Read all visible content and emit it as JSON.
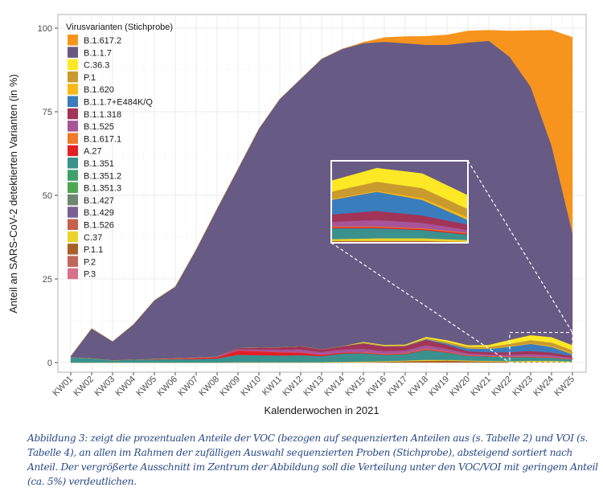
{
  "chart_data": {
    "type": "area",
    "stacked": true,
    "title": "",
    "xlabel": "Kalenderwochen in 2021",
    "ylabel": "Anteil an SARS-CoV-2 detektierten Varianten (in %)",
    "ylim": [
      0,
      100
    ],
    "yticks": [
      0,
      25,
      50,
      75,
      100
    ],
    "grid": true,
    "legend": {
      "title": "Virusvarianten (Stichprobe)",
      "position": "top-left-inside"
    },
    "categories": [
      "KW01",
      "KW02",
      "KW03",
      "KW04",
      "KW05",
      "KW06",
      "KW07",
      "KW08",
      "KW09",
      "KW10",
      "KW11",
      "KW12",
      "KW13",
      "KW14",
      "KW15",
      "KW16",
      "KW17",
      "KW18",
      "KW19",
      "KW20",
      "KW21",
      "KW22",
      "KW23",
      "KW24",
      "KW25"
    ],
    "series": [
      {
        "name": "B.1.617.2",
        "color": "#F7941D",
        "values": [
          0,
          0,
          0,
          0,
          0,
          0,
          0,
          0,
          0,
          0,
          0,
          0,
          0,
          0,
          0.3,
          1.3,
          2.0,
          2.6,
          3.0,
          3.5,
          3.2,
          7.8,
          16.8,
          34.5,
          58.5
        ]
      },
      {
        "name": "B.1.1.7",
        "color": "#675A84",
        "values": [
          0.3,
          8.9,
          5.6,
          10.5,
          17.5,
          21.4,
          32.3,
          44.2,
          53.5,
          65.4,
          74.2,
          79.9,
          86.8,
          88.9,
          89.3,
          90.6,
          90.1,
          87.3,
          88.3,
          90.5,
          90.9,
          84.6,
          74.3,
          57.3,
          33.6
        ]
      },
      {
        "name": "C.36.3",
        "color": "#FDE825",
        "values": [
          0,
          0,
          0,
          0,
          0,
          0,
          0,
          0,
          0,
          0,
          0,
          0,
          0,
          0,
          0.2,
          0.2,
          0.2,
          0.4,
          0.5,
          0.5,
          0.6,
          1.2,
          1.5,
          1.6,
          1.5
        ]
      },
      {
        "name": "P.1",
        "color": "#C99A2E",
        "values": [
          0,
          0,
          0,
          0,
          0,
          0,
          0,
          0,
          0,
          0,
          0,
          0,
          0,
          0,
          0.1,
          0.1,
          0.1,
          0.2,
          0.4,
          0.4,
          0.5,
          0.8,
          1.0,
          1.1,
          0.9
        ]
      },
      {
        "name": "B.1.620",
        "color": "#FBB917",
        "values": [
          0,
          0,
          0,
          0,
          0,
          0,
          0,
          0,
          0,
          0,
          0,
          0,
          0,
          0,
          0.1,
          0.1,
          0.1,
          0.1,
          0.1,
          0.1,
          0.1,
          0.1,
          0.1,
          0.2,
          0.3
        ]
      },
      {
        "name": "B.1.1.7+E484K/Q",
        "color": "#3A7DBD",
        "values": [
          0,
          0,
          0,
          0,
          0,
          0,
          0,
          0,
          0,
          0,
          0,
          0,
          0,
          0,
          0.1,
          0.1,
          0.1,
          0.2,
          0.4,
          0.8,
          1.0,
          1.6,
          2.1,
          1.7,
          0.5
        ]
      },
      {
        "name": "B.1.1.318",
        "color": "#A13457",
        "values": [
          0,
          0,
          0,
          0,
          0,
          0,
          0,
          0,
          0.4,
          0.6,
          0.8,
          1.0,
          0.9,
          1.0,
          1.6,
          1.4,
          1.3,
          1.6,
          1.2,
          0.7,
          0.7,
          0.8,
          1.0,
          0.8,
          0.6
        ]
      },
      {
        "name": "B.1.525",
        "color": "#A8549A",
        "values": [
          0,
          0,
          0,
          0,
          0.1,
          0.1,
          0.2,
          0.2,
          0.4,
          0.5,
          0.7,
          0.9,
          0.8,
          0.9,
          1.0,
          0.8,
          0.8,
          1.0,
          0.8,
          0.5,
          0.4,
          0.5,
          0.7,
          0.6,
          0.3
        ]
      },
      {
        "name": "B.1.617.1",
        "color": "#EE7A2A",
        "values": [
          0,
          0,
          0,
          0,
          0,
          0,
          0,
          0,
          0,
          0,
          0,
          0,
          0,
          0,
          0.1,
          0.1,
          0.1,
          0.2,
          0.1,
          0.1,
          0.1,
          0.1,
          0.1,
          0.1,
          0.1
        ]
      },
      {
        "name": "A.27",
        "color": "#E41F26",
        "values": [
          0,
          0,
          0,
          0,
          0.1,
          0.2,
          0.3,
          0.4,
          1.3,
          1.2,
          1.0,
          0.8,
          0.4,
          0.3,
          0.2,
          0.2,
          0.2,
          0.2,
          0.2,
          0.1,
          0.1,
          0.1,
          0.1,
          0.1,
          0.1
        ]
      },
      {
        "name": "B.1.351",
        "color": "#3A918E",
        "values": [
          1.6,
          1.3,
          0.7,
          0.9,
          0.9,
          1.0,
          1.0,
          1.2,
          2.2,
          2.1,
          2.0,
          2.1,
          1.8,
          2.5,
          2.5,
          1.9,
          1.9,
          3.0,
          2.2,
          1.4,
          1.3,
          1.2,
          1.1,
          0.9,
          0.6
        ]
      },
      {
        "name": "B.1.351.2",
        "color": "#3EA06B",
        "values": [
          0,
          0,
          0,
          0,
          0,
          0,
          0,
          0,
          0,
          0,
          0,
          0,
          0,
          0,
          0,
          0,
          0,
          0,
          0,
          0,
          0,
          0,
          0,
          0,
          0
        ]
      },
      {
        "name": "B.1.351.3",
        "color": "#4EA852",
        "values": [
          0,
          0,
          0,
          0,
          0,
          0,
          0,
          0,
          0,
          0,
          0,
          0,
          0,
          0,
          0,
          0,
          0,
          0,
          0,
          0,
          0,
          0,
          0,
          0,
          0
        ]
      },
      {
        "name": "B.1.427",
        "color": "#6D8770",
        "values": [
          0,
          0,
          0,
          0,
          0,
          0,
          0,
          0,
          0,
          0,
          0,
          0,
          0,
          0,
          0,
          0,
          0,
          0,
          0,
          0,
          0,
          0,
          0,
          0,
          0
        ]
      },
      {
        "name": "B.1.429",
        "color": "#7C5F94",
        "values": [
          0,
          0,
          0,
          0,
          0,
          0,
          0,
          0,
          0,
          0,
          0,
          0,
          0,
          0,
          0,
          0,
          0,
          0,
          0,
          0,
          0,
          0,
          0,
          0,
          0
        ]
      },
      {
        "name": "B.1.526",
        "color": "#C7604F",
        "values": [
          0,
          0,
          0,
          0,
          0,
          0,
          0,
          0,
          0,
          0,
          0,
          0,
          0,
          0,
          0,
          0,
          0,
          0,
          0,
          0,
          0,
          0,
          0,
          0,
          0
        ]
      },
      {
        "name": "C.37",
        "color": "#EBD32C",
        "values": [
          0,
          0,
          0,
          0,
          0,
          0,
          0,
          0,
          0.1,
          0.1,
          0.1,
          0.1,
          0.1,
          0.1,
          0.2,
          0.2,
          0.2,
          0.3,
          0.2,
          0.2,
          0.2,
          0.2,
          0.3,
          0.3,
          0.2
        ]
      },
      {
        "name": "P.1.1",
        "color": "#A8602A",
        "values": [
          0,
          0,
          0,
          0,
          0,
          0,
          0,
          0,
          0,
          0,
          0,
          0,
          0,
          0.1,
          0.1,
          0.2,
          0.4,
          0.5,
          0.6,
          0.4,
          0.3,
          0.2,
          0.2,
          0.2,
          0.1
        ]
      },
      {
        "name": "P.2",
        "color": "#C0675A",
        "values": [
          0,
          0,
          0,
          0,
          0,
          0,
          0,
          0,
          0,
          0,
          0,
          0,
          0,
          0,
          0,
          0,
          0,
          0,
          0,
          0,
          0,
          0,
          0,
          0,
          0
        ]
      },
      {
        "name": "P.3",
        "color": "#D97189",
        "values": [
          0,
          0,
          0,
          0,
          0,
          0,
          0,
          0,
          0,
          0,
          0,
          0,
          0,
          0,
          0,
          0,
          0,
          0,
          0,
          0,
          0,
          0,
          0,
          0,
          0
        ]
      }
    ],
    "annotations": [
      {
        "type": "inset",
        "label": "Vergrößerter Ausschnitt",
        "source_range_x": [
          "KW22",
          "KW25"
        ],
        "source_range_y": [
          0,
          9
        ]
      }
    ]
  },
  "caption": "Abbildung 3: zeigt die prozentualen Anteile der VOC (bezogen auf sequenzierten Anteilen aus (s. Tabelle 2) und VOI (s. Tabelle 4), an allen im Rahmen der zufälligen Auswahl sequenzierten Proben (Stichprobe), absteigend sortiert nach Anteil. Der vergrößerte Ausschnitt im Zentrum der Abbildung soll die Verteilung unter den VOC/VOI mit geringem Anteil (ca. 5%) verdeutlichen."
}
